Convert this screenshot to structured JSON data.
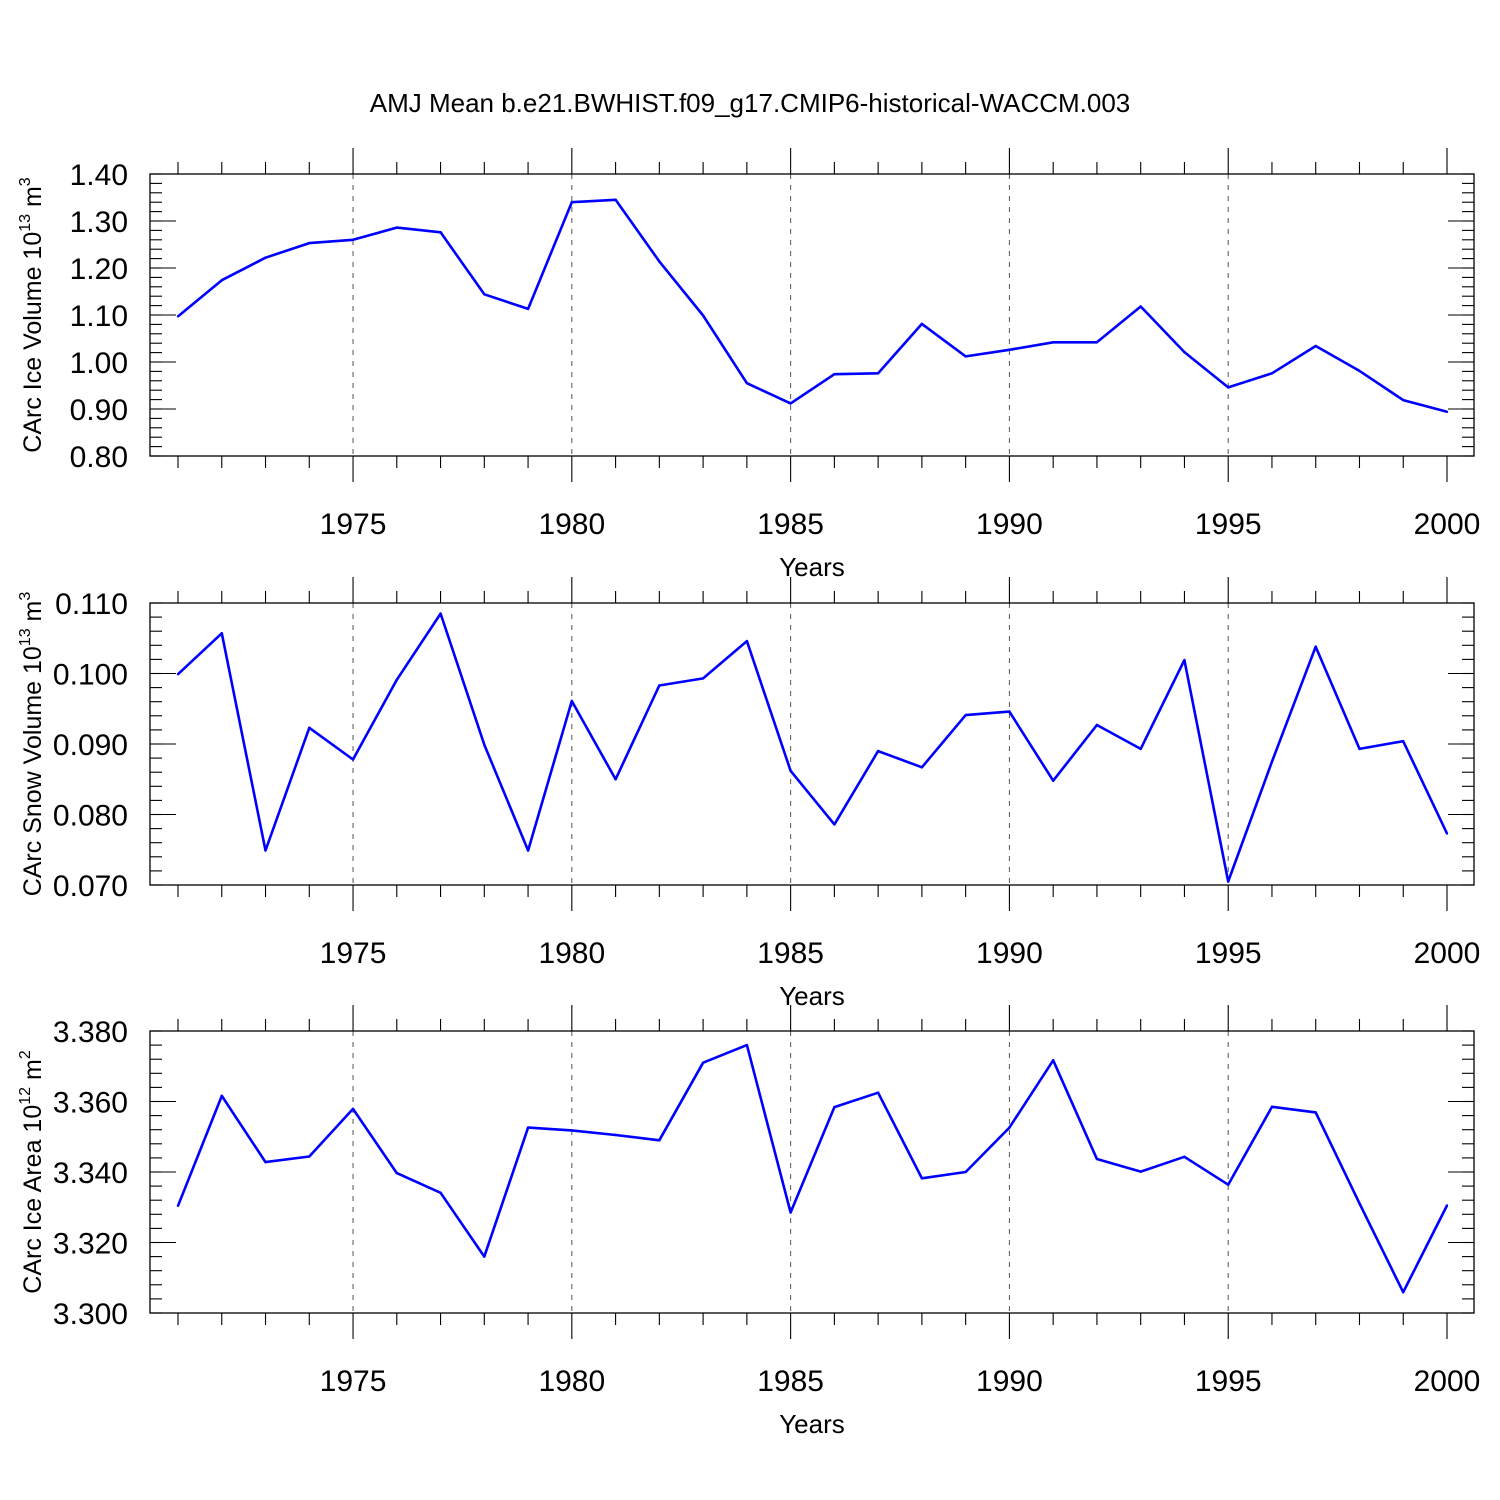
{
  "figure": {
    "title": "AMJ Mean b.e21.BWHIST.f09_g17.CMIP6-historical-WACCM.003",
    "line_color": "#0000ff"
  },
  "chart_data": [
    {
      "type": "line",
      "xlabel": "Years",
      "ylabel": {
        "prefix": "CArc Ice Volume 10",
        "exp": "13",
        "unit": " m",
        "unit_exp": "3"
      },
      "xlim": [
        1971,
        2000
      ],
      "ylim": [
        0.8,
        1.4
      ],
      "xticks": [
        1975,
        1980,
        1985,
        1990,
        1995,
        2000
      ],
      "yticks": [
        "0.80",
        "0.90",
        "1.00",
        "1.10",
        "1.20",
        "1.30",
        "1.40"
      ],
      "y_minor_step": 0.02,
      "grid": "x-dashed",
      "x": [
        1971,
        1972,
        1973,
        1974,
        1975,
        1976,
        1977,
        1978,
        1979,
        1980,
        1981,
        1982,
        1983,
        1984,
        1985,
        1986,
        1987,
        1988,
        1989,
        1990,
        1991,
        1992,
        1993,
        1994,
        1995,
        1996,
        1997,
        1998,
        1999,
        2000
      ],
      "values": [
        1.097,
        1.174,
        1.222,
        1.253,
        1.26,
        1.286,
        1.276,
        1.144,
        1.113,
        1.34,
        1.345,
        1.214,
        1.099,
        0.955,
        0.912,
        0.974,
        0.976,
        1.081,
        1.012,
        1.026,
        1.042,
        1.042,
        1.118,
        1.021,
        0.946,
        0.976,
        1.034,
        0.981,
        0.919,
        0.894
      ]
    },
    {
      "type": "line",
      "xlabel": "Years",
      "ylabel": {
        "prefix": "CArc Snow Volume 10",
        "exp": "13",
        "unit": " m",
        "unit_exp": "3"
      },
      "xlim": [
        1971,
        2000
      ],
      "ylim": [
        0.07,
        0.11
      ],
      "xticks": [
        1975,
        1980,
        1985,
        1990,
        1995,
        2000
      ],
      "yticks": [
        "0.070",
        "0.080",
        "0.090",
        "0.100",
        "0.110"
      ],
      "y_minor_step": 0.002,
      "grid": "x-dashed",
      "x": [
        1971,
        1972,
        1973,
        1974,
        1975,
        1976,
        1977,
        1978,
        1979,
        1980,
        1981,
        1982,
        1983,
        1984,
        1985,
        1986,
        1987,
        1988,
        1989,
        1990,
        1991,
        1992,
        1993,
        1994,
        1995,
        1996,
        1997,
        1998,
        1999,
        2000
      ],
      "values": [
        0.0999,
        0.1057,
        0.0749,
        0.0923,
        0.0878,
        0.0991,
        0.1085,
        0.0899,
        0.0749,
        0.0961,
        0.085,
        0.0983,
        0.0993,
        0.1046,
        0.0862,
        0.0786,
        0.089,
        0.0867,
        0.0941,
        0.0946,
        0.0848,
        0.0927,
        0.0893,
        0.1019,
        0.0705,
        0.0875,
        0.1038,
        0.0893,
        0.0904,
        0.0773
      ]
    },
    {
      "type": "line",
      "xlabel": "Years",
      "ylabel": {
        "prefix": "CArc Ice Area 10",
        "exp": "12",
        "unit": " m",
        "unit_exp": "2"
      },
      "xlim": [
        1971,
        2000
      ],
      "ylim": [
        3.3,
        3.38
      ],
      "xticks": [
        1975,
        1980,
        1985,
        1990,
        1995,
        2000
      ],
      "yticks": [
        "3.300",
        "3.320",
        "3.340",
        "3.360",
        "3.380"
      ],
      "y_minor_step": 0.004,
      "grid": "x-dashed",
      "x": [
        1971,
        1972,
        1973,
        1974,
        1975,
        1976,
        1977,
        1978,
        1979,
        1980,
        1981,
        1982,
        1983,
        1984,
        1985,
        1986,
        1987,
        1988,
        1989,
        1990,
        1991,
        1992,
        1993,
        1994,
        1995,
        1996,
        1997,
        1998,
        1999,
        2000
      ],
      "values": [
        3.3304,
        3.3616,
        3.3428,
        3.3444,
        3.3579,
        3.3397,
        3.3341,
        3.316,
        3.3526,
        3.3518,
        3.3505,
        3.349,
        3.371,
        3.376,
        3.3285,
        3.3584,
        3.3625,
        3.3382,
        3.34,
        3.3526,
        3.3717,
        3.3437,
        3.3401,
        3.3443,
        3.3364,
        3.3585,
        3.3569,
        3.3311,
        3.3059,
        3.3305
      ]
    }
  ]
}
